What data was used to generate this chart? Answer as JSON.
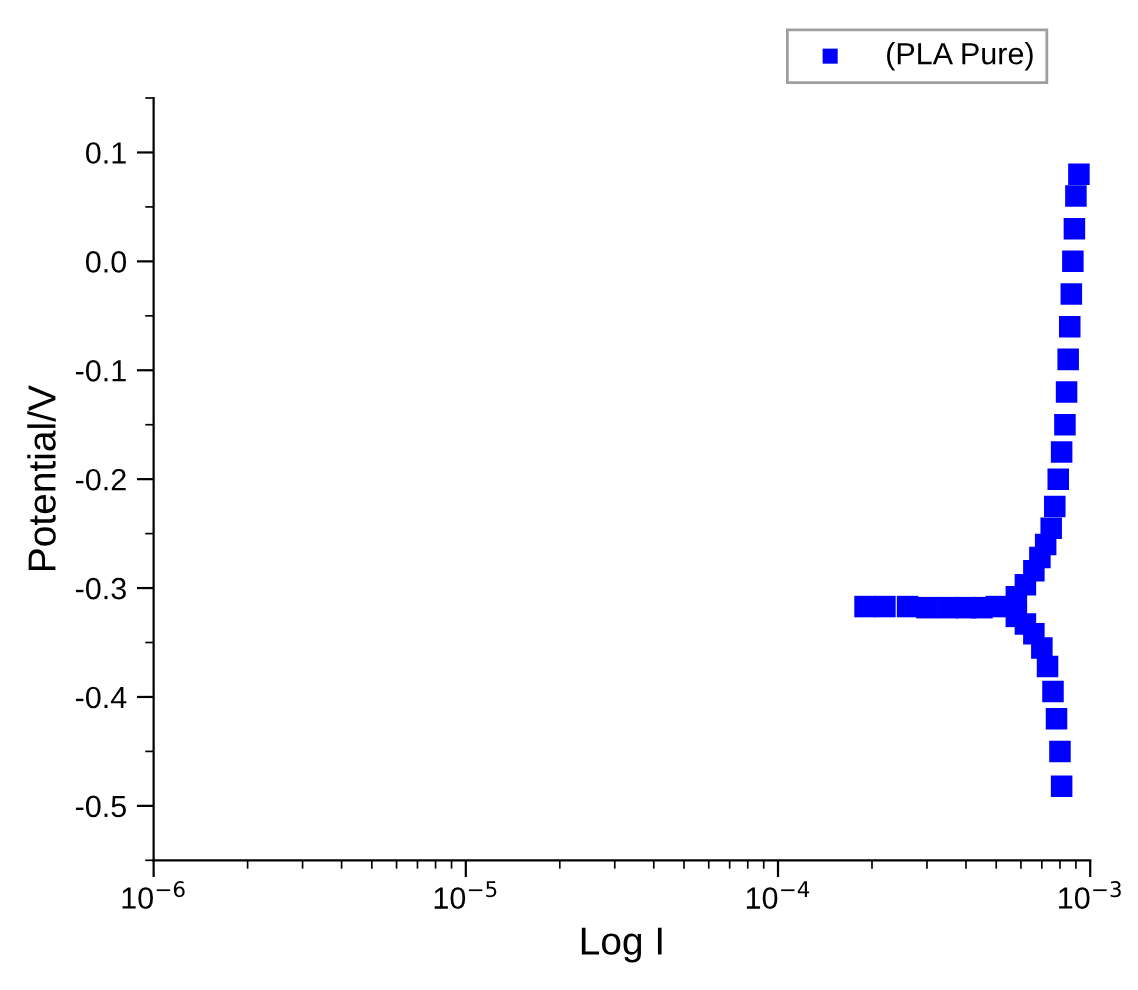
{
  "chart_data": {
    "type": "scatter",
    "xlabel": "Log I",
    "ylabel": "Potential/V",
    "log": "x",
    "marker": "square",
    "legend": "top right",
    "grid": false,
    "xlim": [
      1e-06,
      0.001
    ],
    "ylim": [
      -0.55,
      0.15
    ],
    "xticks": [
      {
        "value": 1e-06,
        "label": "10$^{−6}$"
      },
      {
        "value": 1e-05,
        "label": "10$^{−5}$"
      },
      {
        "value": 0.0001,
        "label": "10$^{−4}$"
      },
      {
        "value": 0.001,
        "label": "10$^{−3}$"
      }
    ],
    "yticks": [
      0.1,
      {
        "value": 0,
        "label": "0.0"
      },
      -0.1,
      -0.2,
      -0.3,
      -0.4,
      -0.5
    ],
    "series": [
      {
        "name": "(PLA Pure)",
        "color": "#0000ff",
        "x": [
          0.00019,
          0.00022,
          0.00026,
          0.0003,
          0.00035,
          0.0004,
          0.00045,
          0.0005,
          0.00058,
          0.00062,
          0.00066,
          0.00069,
          0.00072,
          0.00075,
          0.00077,
          0.00079,
          0.00081,
          0.00083,
          0.00084,
          0.00085,
          0.00086,
          0.00087,
          0.00088,
          0.00089,
          0.0009,
          0.00092,
          0.00058,
          0.00062,
          0.00066,
          0.0007,
          0.00073,
          0.00076,
          0.00078,
          0.0008,
          0.00081
        ],
        "values": [
          -0.317,
          -0.317,
          -0.317,
          -0.318,
          -0.318,
          -0.318,
          -0.318,
          -0.317,
          -0.308,
          -0.297,
          -0.284,
          -0.272,
          -0.26,
          -0.245,
          -0.225,
          -0.2,
          -0.175,
          -0.15,
          -0.12,
          -0.09,
          -0.06,
          -0.03,
          0.0,
          0.03,
          0.06,
          0.08,
          -0.326,
          -0.333,
          -0.342,
          -0.355,
          -0.372,
          -0.395,
          -0.42,
          -0.45,
          -0.482
        ]
      }
    ]
  }
}
